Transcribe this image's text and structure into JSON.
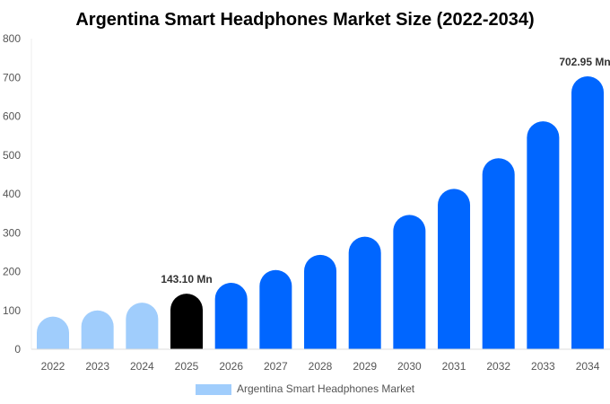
{
  "chart_data": {
    "type": "bar",
    "title": "Argentina Smart Headphones Market Size (2022-2034)",
    "categories": [
      "2022",
      "2023",
      "2024",
      "2025",
      "2026",
      "2027",
      "2028",
      "2029",
      "2030",
      "2031",
      "2032",
      "2033",
      "2034"
    ],
    "series": [
      {
        "name": "Argentina Smart Headphones Market",
        "values": [
          84,
          100,
          120,
          143.1,
          171,
          204,
          243,
          290,
          346,
          413,
          492,
          587,
          702.95
        ]
      }
    ],
    "ylim": [
      0,
      800
    ],
    "yticks": [
      0,
      100,
      200,
      300,
      400,
      500,
      600,
      700,
      800
    ],
    "data_labels": {
      "3": "143.10 Mn",
      "12": "702.95 Mn"
    },
    "grid": false,
    "legend": "bottom",
    "colors": {
      "historical": "#a0cdfc",
      "current": "#000000",
      "forecast": "#0066ff"
    }
  }
}
